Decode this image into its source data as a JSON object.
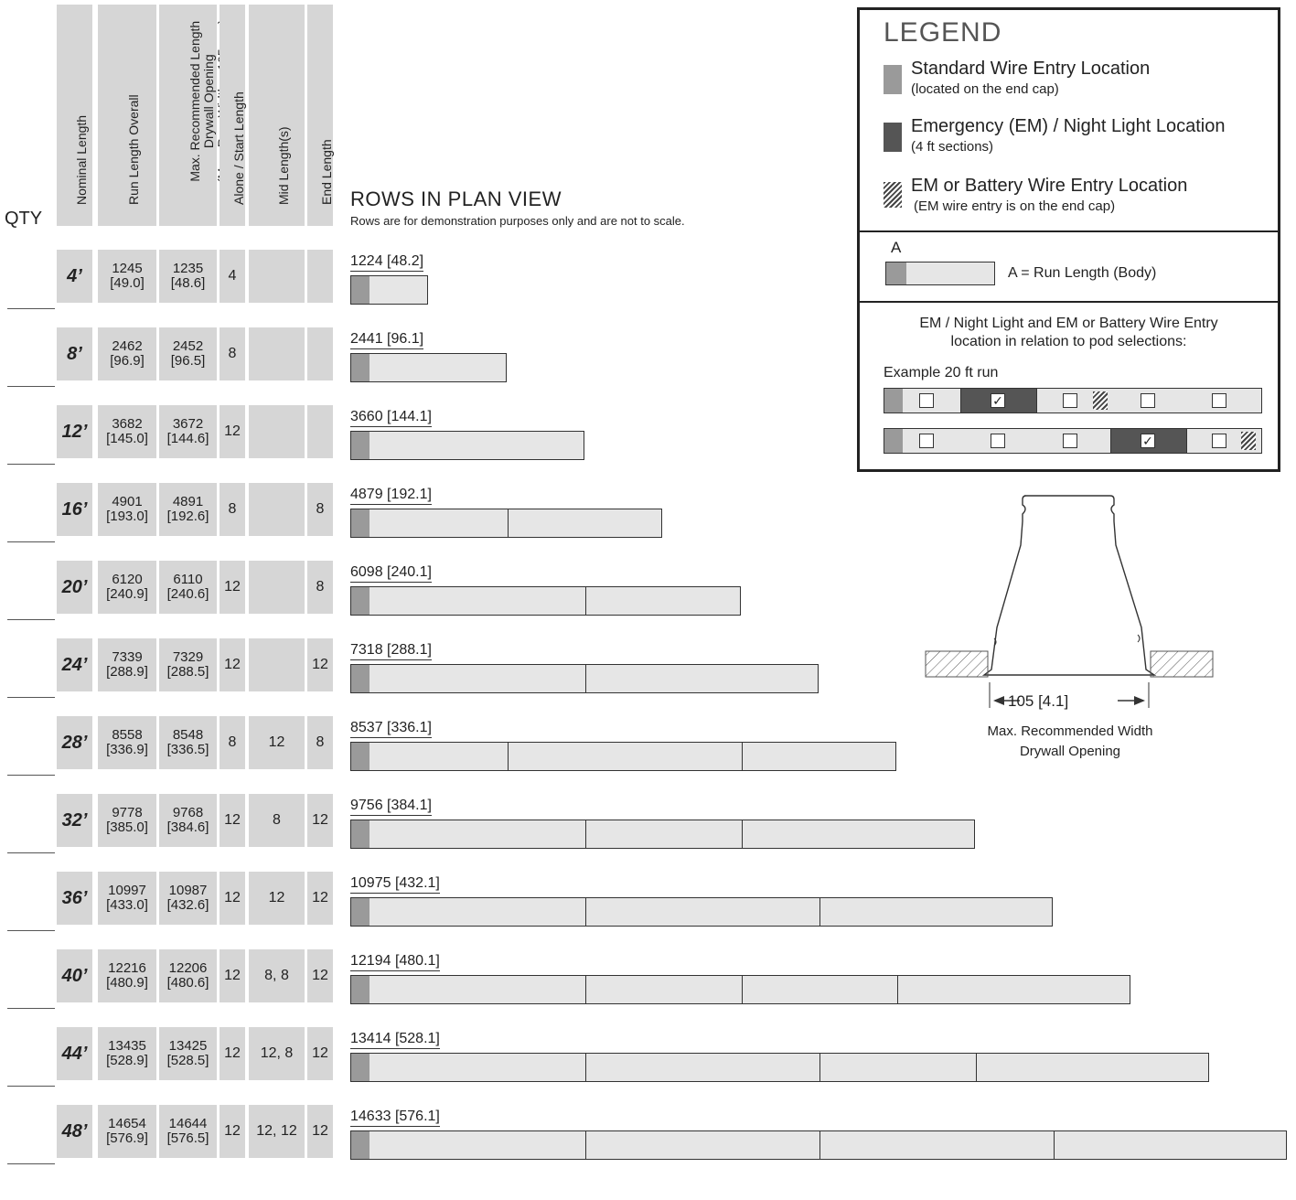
{
  "columns": {
    "qty": "QTY",
    "nominal": "Nominal Length",
    "run": "Run Length Overall",
    "maxrec": "Max. Recommended Length\nDrywall Opening\n(Max. Rec. Width = 105 mm)",
    "alone": "Alone / Start Length",
    "mid": "Mid Length(s)",
    "end": "End Length"
  },
  "plan": {
    "title": "ROWS IN PLAN VIEW",
    "subtitle": "Rows are for demonstration purposes only and are not to scale."
  },
  "rows": [
    {
      "nominal": "4’",
      "run": "1245\n[49.0]",
      "maxrec": "1235\n[48.6]",
      "alone": "4",
      "mid": "",
      "end": "",
      "label": "1224 [48.2]",
      "sections": [
        4
      ]
    },
    {
      "nominal": "8’",
      "run": "2462\n[96.9]",
      "maxrec": "2452\n[96.5]",
      "alone": "8",
      "mid": "",
      "end": "",
      "label": "2441 [96.1]",
      "sections": [
        8
      ]
    },
    {
      "nominal": "12’",
      "run": "3682\n[145.0]",
      "maxrec": "3672\n[144.6]",
      "alone": "12",
      "mid": "",
      "end": "",
      "label": "3660 [144.1]",
      "sections": [
        12
      ]
    },
    {
      "nominal": "16’",
      "run": "4901\n[193.0]",
      "maxrec": "4891\n[192.6]",
      "alone": "8",
      "mid": "",
      "end": "8",
      "label": "4879 [192.1]",
      "sections": [
        8,
        8
      ]
    },
    {
      "nominal": "20’",
      "run": "6120\n[240.9]",
      "maxrec": "6110\n[240.6]",
      "alone": "12",
      "mid": "",
      "end": "8",
      "label": "6098 [240.1]",
      "sections": [
        12,
        8
      ]
    },
    {
      "nominal": "24’",
      "run": "7339\n[288.9]",
      "maxrec": "7329\n[288.5]",
      "alone": "12",
      "mid": "",
      "end": "12",
      "label": "7318 [288.1]",
      "sections": [
        12,
        12
      ]
    },
    {
      "nominal": "28’",
      "run": "8558\n[336.9]",
      "maxrec": "8548\n[336.5]",
      "alone": "8",
      "mid": "12",
      "end": "8",
      "label": "8537 [336.1]",
      "sections": [
        8,
        12,
        8
      ]
    },
    {
      "nominal": "32’",
      "run": "9778\n[385.0]",
      "maxrec": "9768\n[384.6]",
      "alone": "12",
      "mid": "8",
      "end": "12",
      "label": "9756 [384.1]",
      "sections": [
        12,
        8,
        12
      ]
    },
    {
      "nominal": "36’",
      "run": "10997\n[433.0]",
      "maxrec": "10987\n[432.6]",
      "alone": "12",
      "mid": "12",
      "end": "12",
      "label": "10975 [432.1]",
      "sections": [
        12,
        12,
        12
      ]
    },
    {
      "nominal": "40’",
      "run": "12216\n[480.9]",
      "maxrec": "12206\n[480.6]",
      "alone": "12",
      "mid": "8, 8",
      "end": "12",
      "label": "12194 [480.1]",
      "sections": [
        12,
        8,
        8,
        12
      ]
    },
    {
      "nominal": "44’",
      "run": "13435\n[528.9]",
      "maxrec": "13425\n[528.5]",
      "alone": "12",
      "mid": "12, 8",
      "end": "12",
      "label": "13414 [528.1]",
      "sections": [
        12,
        12,
        8,
        12
      ]
    },
    {
      "nominal": "48’",
      "run": "14654\n[576.9]",
      "maxrec": "14644\n[576.5]",
      "alone": "12",
      "mid": "12, 12",
      "end": "12",
      "label": "14633 [576.1]",
      "sections": [
        12,
        12,
        12,
        12
      ]
    }
  ],
  "legend": {
    "title": "LEGEND",
    "std_main": "Standard Wire Entry Location",
    "std_sub": "(located on the end cap)",
    "em_main": "Emergency (EM) / Night Light Location",
    "em_sub": "(4 ft sections)",
    "bat_main": "EM or Battery Wire Entry Location",
    "bat_sub": "(EM wire entry is on the end cap)",
    "a_letter": "A",
    "a_text": "A = Run Length (Body)",
    "rel_line1": "EM / Night Light and EM or Battery Wire Entry",
    "rel_line2": "location in relation to pod selections:",
    "example": "Example 20 ft run",
    "check": "✓"
  },
  "diagram": {
    "dim": "105 [4.1]",
    "cap1": "Max. Recommended Width",
    "cap2": "Drywall Opening"
  },
  "colors": {
    "cell": "#d6d6d6",
    "cap": "#9a9a9a",
    "em": "#555555",
    "bar": "#e6e6e6"
  }
}
